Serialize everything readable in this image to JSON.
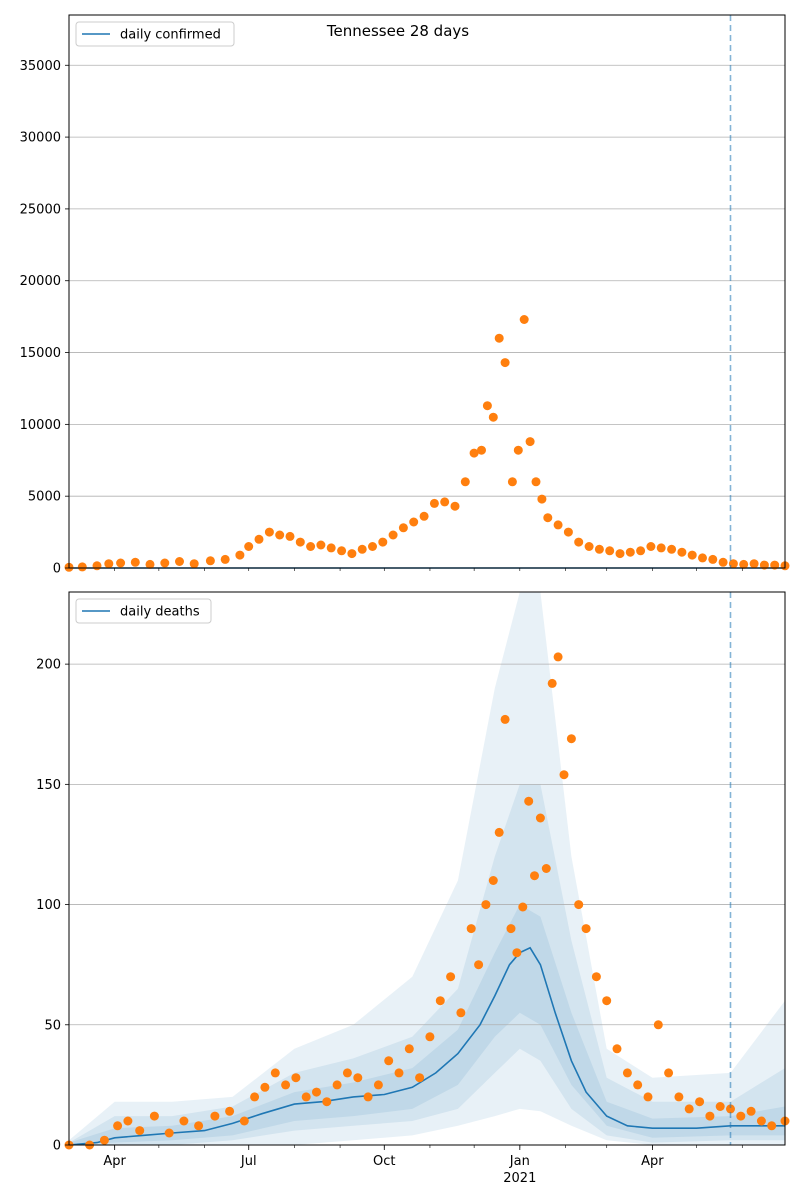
{
  "chart_data": [
    {
      "type": "scatter",
      "title": "Tennessee 28 days",
      "legend": {
        "label": "daily confirmed",
        "placement": "top-left"
      },
      "ylim": [
        0,
        38500
      ],
      "yticks": [
        0,
        5000,
        10000,
        15000,
        20000,
        25000,
        30000,
        35000
      ],
      "grid": "y",
      "x_range": [
        "2020-03-01",
        "2021-06-30"
      ],
      "vline_date": "2021-05-24",
      "line_color": "#1f77b4",
      "point_color": "#ff7f0e",
      "line": {
        "name": "daily confirmed",
        "x": [
          "2020-03-01",
          "2021-06-30"
        ],
        "y": [
          0,
          0
        ]
      },
      "points": {
        "x": [
          "2020-03-01",
          "2020-03-10",
          "2020-03-20",
          "2020-03-28",
          "2020-04-05",
          "2020-04-15",
          "2020-04-25",
          "2020-05-05",
          "2020-05-15",
          "2020-05-25",
          "2020-06-05",
          "2020-06-15",
          "2020-06-25",
          "2020-07-01",
          "2020-07-08",
          "2020-07-15",
          "2020-07-22",
          "2020-07-29",
          "2020-08-05",
          "2020-08-12",
          "2020-08-19",
          "2020-08-26",
          "2020-09-02",
          "2020-09-09",
          "2020-09-16",
          "2020-09-23",
          "2020-09-30",
          "2020-10-07",
          "2020-10-14",
          "2020-10-21",
          "2020-10-28",
          "2020-11-04",
          "2020-11-11",
          "2020-11-18",
          "2020-11-25",
          "2020-12-01",
          "2020-12-06",
          "2020-12-10",
          "2020-12-14",
          "2020-12-18",
          "2020-12-22",
          "2020-12-27",
          "2020-12-31",
          "2021-01-04",
          "2021-01-08",
          "2021-01-12",
          "2021-01-16",
          "2021-01-20",
          "2021-01-27",
          "2021-02-03",
          "2021-02-10",
          "2021-02-17",
          "2021-02-24",
          "2021-03-03",
          "2021-03-10",
          "2021-03-17",
          "2021-03-24",
          "2021-03-31",
          "2021-04-07",
          "2021-04-14",
          "2021-04-21",
          "2021-04-28",
          "2021-05-05",
          "2021-05-12",
          "2021-05-19",
          "2021-05-26",
          "2021-06-02",
          "2021-06-09",
          "2021-06-16",
          "2021-06-23",
          "2021-06-30"
        ],
        "y": [
          50,
          80,
          150,
          300,
          350,
          400,
          250,
          350,
          450,
          300,
          500,
          600,
          900,
          1500,
          2000,
          2500,
          2300,
          2200,
          1800,
          1500,
          1600,
          1400,
          1200,
          1000,
          1300,
          1500,
          1800,
          2300,
          2800,
          3200,
          3600,
          4500,
          4600,
          4300,
          6000,
          8000,
          8200,
          11300,
          10500,
          16000,
          14300,
          6000,
          8200,
          17300,
          8800,
          6000,
          4800,
          3500,
          3000,
          2500,
          1800,
          1500,
          1300,
          1200,
          1000,
          1100,
          1200,
          1500,
          1400,
          1300,
          1100,
          900,
          700,
          600,
          400,
          300,
          250,
          300,
          200,
          200,
          150
        ]
      }
    },
    {
      "type": "scatter",
      "legend": {
        "label": "daily deaths",
        "placement": "top-left"
      },
      "ylim": [
        0,
        230
      ],
      "yticks": [
        0,
        50,
        100,
        150,
        200
      ],
      "grid": "y",
      "x_range": [
        "2020-03-01",
        "2021-06-30"
      ],
      "x_tick_labels": [
        {
          "date": "2020-04-01",
          "label": "Apr",
          "sub": ""
        },
        {
          "date": "2020-07-01",
          "label": "Jul",
          "sub": ""
        },
        {
          "date": "2020-10-01",
          "label": "Oct",
          "sub": ""
        },
        {
          "date": "2021-01-01",
          "label": "Jan",
          "sub": "2021"
        },
        {
          "date": "2021-04-01",
          "label": "Apr",
          "sub": ""
        }
      ],
      "vline_date": "2021-05-24",
      "line_color": "#1f77b4",
      "point_color": "#ff7f0e",
      "band_color": "#1f77b4",
      "line": {
        "name": "daily deaths",
        "x": [
          "2020-03-01",
          "2020-03-20",
          "2020-04-01",
          "2020-04-20",
          "2020-05-10",
          "2020-06-01",
          "2020-06-20",
          "2020-07-10",
          "2020-08-01",
          "2020-08-20",
          "2020-09-10",
          "2020-10-01",
          "2020-10-20",
          "2020-11-05",
          "2020-11-20",
          "2020-12-05",
          "2020-12-15",
          "2020-12-25",
          "2021-01-01",
          "2021-01-08",
          "2021-01-15",
          "2021-01-25",
          "2021-02-05",
          "2021-02-15",
          "2021-03-01",
          "2021-03-15",
          "2021-04-01",
          "2021-04-15",
          "2021-05-01",
          "2021-05-24",
          "2021-06-15",
          "2021-06-30"
        ],
        "y": [
          0,
          1,
          3,
          4,
          5,
          6,
          9,
          13,
          17,
          18,
          20,
          21,
          24,
          30,
          38,
          50,
          62,
          75,
          80,
          82,
          75,
          55,
          35,
          22,
          12,
          8,
          7,
          7,
          7,
          8,
          8,
          8
        ]
      },
      "bands": [
        {
          "x": [
            "2020-03-01",
            "2020-04-01",
            "2020-05-10",
            "2020-06-20",
            "2020-08-01",
            "2020-09-10",
            "2020-10-20",
            "2020-11-20",
            "2020-12-15",
            "2021-01-01",
            "2021-01-15",
            "2021-02-05",
            "2021-03-01",
            "2021-04-01",
            "2021-05-24",
            "2021-06-30"
          ],
          "lower": [
            0,
            0,
            0,
            0,
            0,
            2,
            4,
            8,
            12,
            15,
            14,
            8,
            2,
            0,
            0,
            0
          ],
          "upper": [
            2,
            18,
            18,
            20,
            40,
            50,
            70,
            110,
            190,
            240,
            250,
            120,
            40,
            28,
            30,
            60
          ]
        },
        {
          "x": [
            "2020-03-01",
            "2020-04-01",
            "2020-05-10",
            "2020-06-20",
            "2020-08-01",
            "2020-09-10",
            "2020-10-20",
            "2020-11-20",
            "2020-12-15",
            "2021-01-01",
            "2021-01-15",
            "2021-02-05",
            "2021-03-01",
            "2021-04-01",
            "2021-05-24",
            "2021-06-30"
          ],
          "lower": [
            0,
            0,
            0,
            2,
            6,
            8,
            10,
            15,
            30,
            40,
            35,
            15,
            4,
            1,
            2,
            2
          ],
          "upper": [
            1,
            12,
            12,
            16,
            30,
            36,
            45,
            65,
            120,
            150,
            150,
            85,
            28,
            18,
            18,
            32
          ]
        },
        {
          "x": [
            "2020-03-01",
            "2020-04-01",
            "2020-05-10",
            "2020-06-20",
            "2020-08-01",
            "2020-09-10",
            "2020-10-20",
            "2020-11-20",
            "2020-12-15",
            "2021-01-01",
            "2021-01-15",
            "2021-02-05",
            "2021-03-01",
            "2021-04-01",
            "2021-05-24",
            "2021-06-30"
          ],
          "lower": [
            0,
            1,
            2,
            4,
            10,
            12,
            15,
            25,
            45,
            55,
            50,
            25,
            8,
            3,
            4,
            4
          ],
          "upper": [
            1,
            7,
            8,
            12,
            22,
            26,
            32,
            48,
            80,
            100,
            95,
            55,
            18,
            11,
            12,
            16
          ]
        }
      ],
      "points": {
        "x": [
          "2020-03-01",
          "2020-03-15",
          "2020-03-25",
          "2020-04-03",
          "2020-04-10",
          "2020-04-18",
          "2020-04-28",
          "2020-05-08",
          "2020-05-18",
          "2020-05-28",
          "2020-06-08",
          "2020-06-18",
          "2020-06-28",
          "2020-07-05",
          "2020-07-12",
          "2020-07-19",
          "2020-07-26",
          "2020-08-02",
          "2020-08-09",
          "2020-08-16",
          "2020-08-23",
          "2020-08-30",
          "2020-09-06",
          "2020-09-13",
          "2020-09-20",
          "2020-09-27",
          "2020-10-04",
          "2020-10-11",
          "2020-10-18",
          "2020-10-25",
          "2020-11-01",
          "2020-11-08",
          "2020-11-15",
          "2020-11-22",
          "2020-11-29",
          "2020-12-04",
          "2020-12-09",
          "2020-12-14",
          "2020-12-18",
          "2020-12-22",
          "2020-12-26",
          "2020-12-30",
          "2021-01-03",
          "2021-01-07",
          "2021-01-11",
          "2021-01-15",
          "2021-01-19",
          "2021-01-23",
          "2021-01-27",
          "2021-01-31",
          "2021-02-05",
          "2021-02-10",
          "2021-02-15",
          "2021-02-22",
          "2021-03-01",
          "2021-03-08",
          "2021-03-15",
          "2021-03-22",
          "2021-03-29",
          "2021-04-05",
          "2021-04-12",
          "2021-04-19",
          "2021-04-26",
          "2021-05-03",
          "2021-05-10",
          "2021-05-17",
          "2021-05-24",
          "2021-05-31",
          "2021-06-07",
          "2021-06-14",
          "2021-06-21",
          "2021-06-30"
        ],
        "y": [
          0,
          0,
          2,
          8,
          10,
          6,
          12,
          5,
          10,
          8,
          12,
          14,
          10,
          20,
          24,
          30,
          25,
          28,
          20,
          22,
          18,
          25,
          30,
          28,
          20,
          25,
          35,
          30,
          40,
          28,
          45,
          60,
          70,
          55,
          90,
          75,
          100,
          110,
          130,
          177,
          90,
          80,
          99,
          143,
          112,
          136,
          115,
          192,
          203,
          154,
          169,
          100,
          90,
          70,
          60,
          40,
          30,
          25,
          20,
          50,
          30,
          20,
          15,
          18,
          12,
          16,
          15,
          12,
          14,
          10,
          8,
          10
        ]
      }
    }
  ]
}
